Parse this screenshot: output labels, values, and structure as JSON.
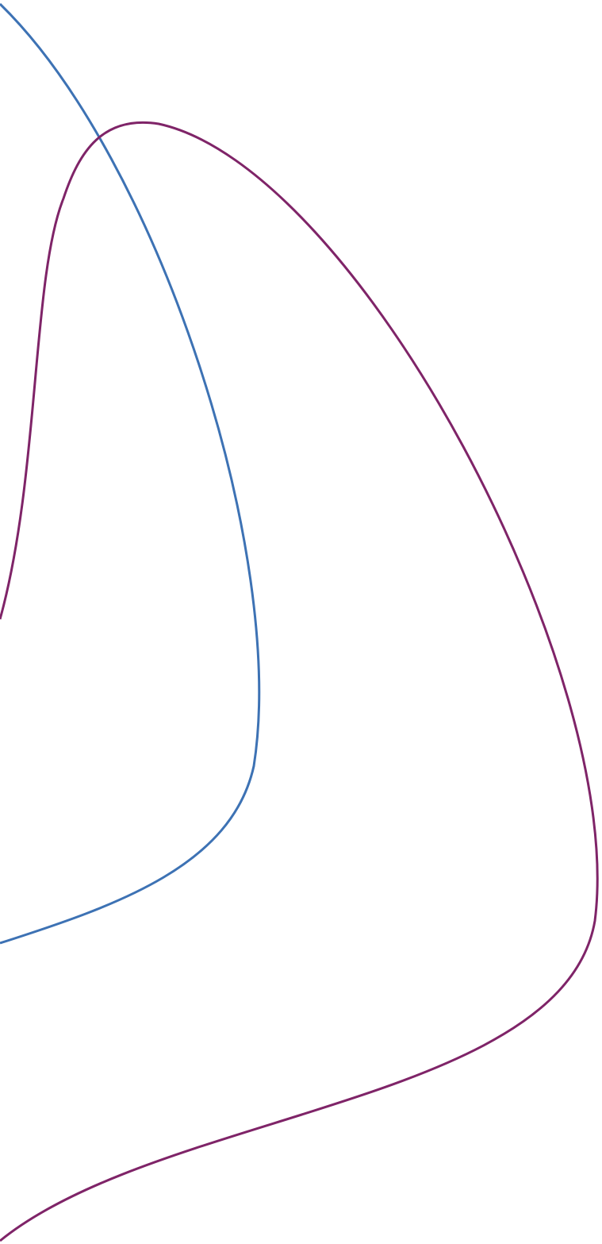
{
  "background": "#ffffff",
  "curves": [
    {
      "name": "blue-curve",
      "color": "#3d72b4"
    },
    {
      "name": "purple-curve",
      "color": "#7f2468"
    }
  ]
}
